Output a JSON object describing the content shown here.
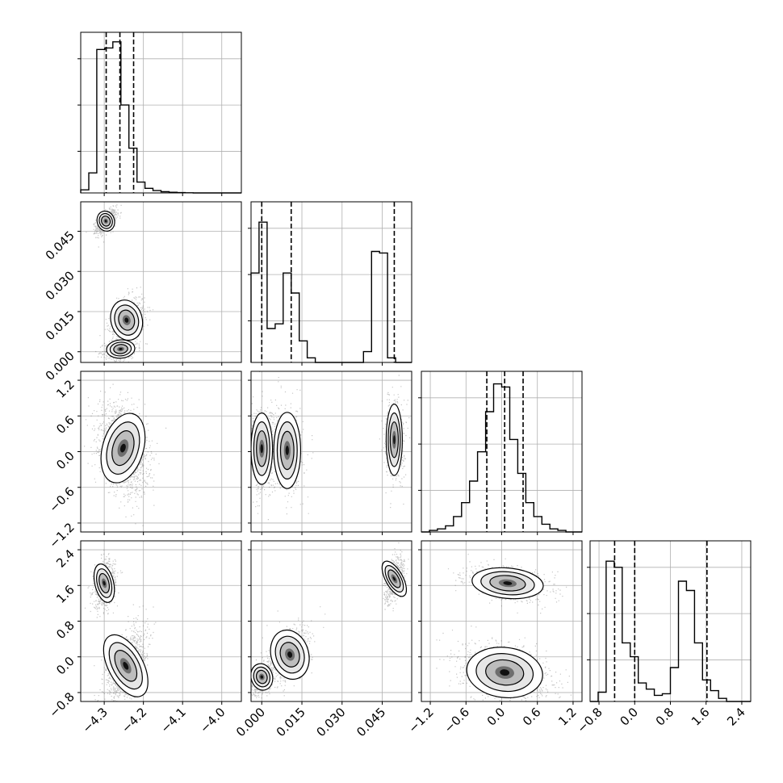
{
  "figure": {
    "type": "corner-plot",
    "background": "#ffffff",
    "line_color": "#000000",
    "grid_color": "#b0b0b0",
    "scatter_color": "#555555"
  },
  "chart_data": {
    "type": "corner",
    "grid": true,
    "parameters": [
      {
        "id": "p0",
        "label": "",
        "range": [
          -4.36,
          -3.95
        ],
        "ticks": [
          -4.3,
          -4.2,
          -4.1,
          -4.0
        ],
        "tick_labels": [
          "−4.3",
          "−4.2",
          "−4.1",
          "−4.0"
        ],
        "quantiles": [
          -4.295,
          -4.26,
          -4.225
        ],
        "hist": [
          0.02,
          0.13,
          0.93,
          0.94,
          0.98,
          0.57,
          0.29,
          0.07,
          0.03,
          0.015,
          0.008,
          0.004,
          0.002,
          0.001,
          0,
          0,
          0,
          0,
          0,
          0
        ]
      },
      {
        "id": "p1",
        "label": "",
        "range": [
          -0.004,
          0.056
        ],
        "ticks": [
          0.0,
          0.015,
          0.03,
          0.045
        ],
        "tick_labels": [
          "0.000",
          "0.015",
          "0.030",
          "0.045"
        ],
        "quantiles": [
          0.0,
          0.011,
          0.0495
        ],
        "hist": [
          0.58,
          0.91,
          0.22,
          0.25,
          0.58,
          0.45,
          0.14,
          0.03,
          0.0,
          0.0,
          0.0,
          0.0,
          0.0,
          0.0,
          0.07,
          0.72,
          0.71,
          0.03,
          0.0,
          0.0
        ]
      },
      {
        "id": "p2",
        "label": "",
        "range": [
          -1.35,
          1.35
        ],
        "ticks": [
          -1.2,
          -0.6,
          0.0,
          0.6,
          1.2
        ],
        "tick_labels": [
          "−1.2",
          "−0.6",
          "0.0",
          "0.6",
          "1.2"
        ],
        "quantiles": [
          -0.25,
          0.05,
          0.36
        ],
        "hist": [
          0.0,
          0.01,
          0.02,
          0.04,
          0.1,
          0.19,
          0.33,
          0.52,
          0.78,
          0.96,
          0.94,
          0.6,
          0.38,
          0.19,
          0.1,
          0.05,
          0.02,
          0.01,
          0.0,
          0.0
        ]
      },
      {
        "id": "p3",
        "label": "",
        "range": [
          -1.0,
          2.6
        ],
        "ticks": [
          -0.8,
          0.0,
          0.8,
          1.6,
          2.4
        ],
        "tick_labels": [
          "−0.8",
          "0.0",
          "0.8",
          "1.6",
          "2.4"
        ],
        "quantiles": [
          -0.45,
          0.0,
          1.62
        ],
        "hist": [
          0.0,
          0.06,
          0.91,
          0.87,
          0.38,
          0.29,
          0.12,
          0.08,
          0.04,
          0.05,
          0.22,
          0.78,
          0.72,
          0.38,
          0.14,
          0.07,
          0.02,
          0.0,
          0.0,
          0.0
        ]
      }
    ],
    "pairs": [
      {
        "x": "p0",
        "y": "p1",
        "modes": [
          {
            "x": -4.296,
            "y": 0.0488,
            "sx": 0.011,
            "sy": 0.0019,
            "rho": 0.55,
            "w": 0.42
          },
          {
            "x": -4.258,
            "y": 0.001,
            "sx": 0.018,
            "sy": 0.0017,
            "rho": 0.2,
            "w": 0.28
          },
          {
            "x": -4.243,
            "y": 0.0118,
            "sx": 0.02,
            "sy": 0.0038,
            "rho": 0.35,
            "w": 0.3
          }
        ]
      },
      {
        "x": "p0",
        "y": "p2",
        "modes": [
          {
            "x": -4.252,
            "y": 0.06,
            "sx": 0.026,
            "sy": 0.3,
            "rho": -0.3,
            "w": 1.0
          }
        ]
      },
      {
        "x": "p0",
        "y": "p3",
        "modes": [
          {
            "x": -4.3,
            "y": 1.65,
            "sx": 0.012,
            "sy": 0.22,
            "rho": 0.2,
            "w": 0.45
          },
          {
            "x": -4.245,
            "y": -0.2,
            "sx": 0.022,
            "sy": 0.38,
            "rho": 0.55,
            "w": 0.55
          }
        ]
      },
      {
        "x": "p1",
        "y": "p2",
        "modes": [
          {
            "x": 0.0,
            "y": 0.05,
            "sx": 0.002,
            "sy": 0.3,
            "rho": 0.0,
            "w": 0.45
          },
          {
            "x": 0.0095,
            "y": 0.02,
            "sx": 0.0025,
            "sy": 0.32,
            "rho": 0.0,
            "w": 0.25
          },
          {
            "x": 0.0495,
            "y": 0.2,
            "sx": 0.0015,
            "sy": 0.3,
            "rho": 0.0,
            "w": 0.3
          }
        ]
      },
      {
        "x": "p1",
        "y": "p3",
        "modes": [
          {
            "x": 0.0,
            "y": -0.45,
            "sx": 0.002,
            "sy": 0.15,
            "rho": 0.4,
            "w": 0.4
          },
          {
            "x": 0.0105,
            "y": 0.05,
            "sx": 0.0035,
            "sy": 0.28,
            "rho": 0.4,
            "w": 0.3
          },
          {
            "x": 0.0495,
            "y": 1.75,
            "sx": 0.0016,
            "sy": 0.22,
            "rho": 0.5,
            "w": 0.3
          }
        ]
      },
      {
        "x": "p2",
        "y": "p3",
        "modes": [
          {
            "x": 0.05,
            "y": -0.35,
            "sx": 0.32,
            "sy": 0.28,
            "rho": -0.3,
            "w": 0.6
          },
          {
            "x": 0.1,
            "y": 1.65,
            "sx": 0.3,
            "sy": 0.17,
            "rho": -0.35,
            "w": 0.4
          }
        ]
      }
    ]
  }
}
